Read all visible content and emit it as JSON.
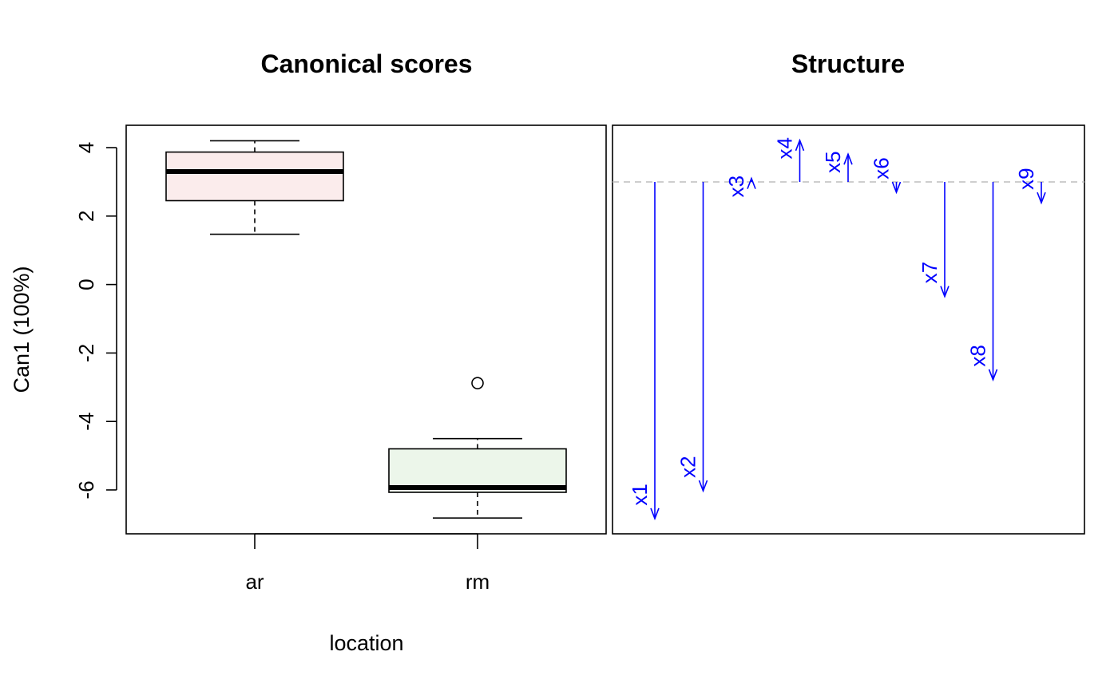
{
  "chart_data": [
    {
      "type": "box",
      "title": "Canonical scores",
      "xlabel": "location",
      "ylabel": "Can1 (100%)",
      "categories": [
        "ar",
        "rm"
      ],
      "yticks": [
        4,
        2,
        0,
        -2,
        -4,
        -6
      ],
      "ylim": [
        -7.3,
        4.6
      ],
      "grid": false,
      "boxes": [
        {
          "category": "ar",
          "fill": "#fbecec",
          "whisker_low": 1.47,
          "q1": 2.45,
          "median": 3.3,
          "q3": 3.87,
          "whisker_high": 4.2,
          "outliers": []
        },
        {
          "category": "rm",
          "fill": "#ecf6ea",
          "whisker_low": -6.82,
          "q1": -6.07,
          "median": -5.93,
          "q3": -4.8,
          "whisker_high": -4.5,
          "outliers": [
            -2.88
          ]
        }
      ]
    },
    {
      "type": "arrows",
      "title": "Structure",
      "axes_shown": false,
      "baseline": 0,
      "baseline_style": "dashed",
      "color": "#0000ff",
      "variables": [
        {
          "name": "x1",
          "value": -0.97
        },
        {
          "name": "x2",
          "value": -0.89
        },
        {
          "name": "x3",
          "value": 0.01
        },
        {
          "name": "x4",
          "value": 0.12
        },
        {
          "name": "x5",
          "value": 0.08
        },
        {
          "name": "x6",
          "value": -0.03
        },
        {
          "name": "x7",
          "value": -0.33
        },
        {
          "name": "x8",
          "value": -0.57
        },
        {
          "name": "x9",
          "value": -0.06
        }
      ]
    }
  ]
}
